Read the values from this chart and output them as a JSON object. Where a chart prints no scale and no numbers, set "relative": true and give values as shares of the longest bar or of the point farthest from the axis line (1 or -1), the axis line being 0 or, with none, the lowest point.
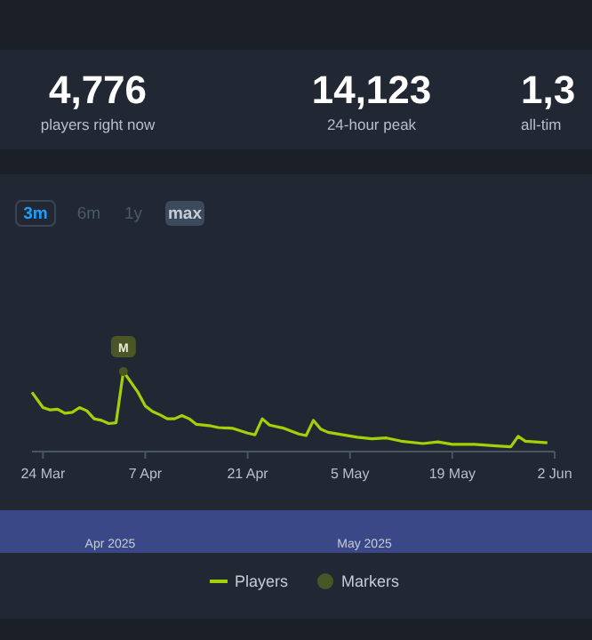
{
  "chart_data": {
    "type": "line",
    "relative": true,
    "legend": "bottom",
    "line_style": "solid",
    "xlim": [
      "2025-03-22T12:00",
      "2025-06-02"
    ],
    "xticks": [
      {
        "value": "2025-03-24",
        "label": "24 Mar"
      },
      {
        "value": "2025-04-07",
        "label": "7 Apr"
      },
      {
        "value": "2025-04-21",
        "label": "21 Apr"
      },
      {
        "value": "2025-05-05",
        "label": "5 May"
      },
      {
        "value": "2025-05-19",
        "label": "19 May"
      },
      {
        "value": "2025-06-02",
        "label": "2 Jun"
      }
    ],
    "series": [
      {
        "name": "Players",
        "color": "#a4d007",
        "x": [
          "2025-03-22T12:00",
          "2025-03-24",
          "2025-03-25",
          "2025-03-26",
          "2025-03-27",
          "2025-03-28",
          "2025-03-29",
          "2025-03-30",
          "2025-03-31",
          "2025-04-01",
          "2025-04-02",
          "2025-04-03",
          "2025-04-04",
          "2025-04-05",
          "2025-04-06",
          "2025-04-07",
          "2025-04-08",
          "2025-04-09",
          "2025-04-10",
          "2025-04-11",
          "2025-04-12",
          "2025-04-13",
          "2025-04-14",
          "2025-04-16",
          "2025-04-17",
          "2025-04-19",
          "2025-04-21",
          "2025-04-22",
          "2025-04-23",
          "2025-04-24",
          "2025-04-26",
          "2025-04-28",
          "2025-04-29",
          "2025-04-30",
          "2025-05-01",
          "2025-05-02",
          "2025-05-04",
          "2025-05-06",
          "2025-05-08",
          "2025-05-10",
          "2025-05-12",
          "2025-05-15",
          "2025-05-17",
          "2025-05-19",
          "2025-05-22",
          "2025-05-25",
          "2025-05-27",
          "2025-05-28",
          "2025-05-29",
          "2025-06-01"
        ],
        "values": [
          0.74,
          0.55,
          0.52,
          0.53,
          0.48,
          0.49,
          0.55,
          0.51,
          0.41,
          0.39,
          0.35,
          0.36,
          1,
          0.87,
          0.74,
          0.57,
          0.5,
          0.46,
          0.41,
          0.41,
          0.45,
          0.41,
          0.34,
          0.32,
          0.3,
          0.29,
          0.23,
          0.21,
          0.41,
          0.33,
          0.29,
          0.22,
          0.2,
          0.39,
          0.28,
          0.24,
          0.21,
          0.18,
          0.16,
          0.17,
          0.13,
          0.1,
          0.12,
          0.09,
          0.09,
          0.07,
          0.06,
          0.19,
          0.13,
          0.11
        ]
      },
      {
        "name": "Markers",
        "color": "#4b5626",
        "type": "scatter",
        "x": [
          "2025-04-04"
        ],
        "values": [
          1
        ]
      }
    ],
    "annotations": [
      "4,776",
      "players right now",
      "14,123",
      "24-hour peak",
      "1,3",
      "all-tim",
      "3m",
      "6m",
      "1y",
      "max",
      "Apr 2025",
      "May 2025",
      {
        "text": "M",
        "x": "2025-04-04",
        "y": 1
      }
    ]
  }
}
